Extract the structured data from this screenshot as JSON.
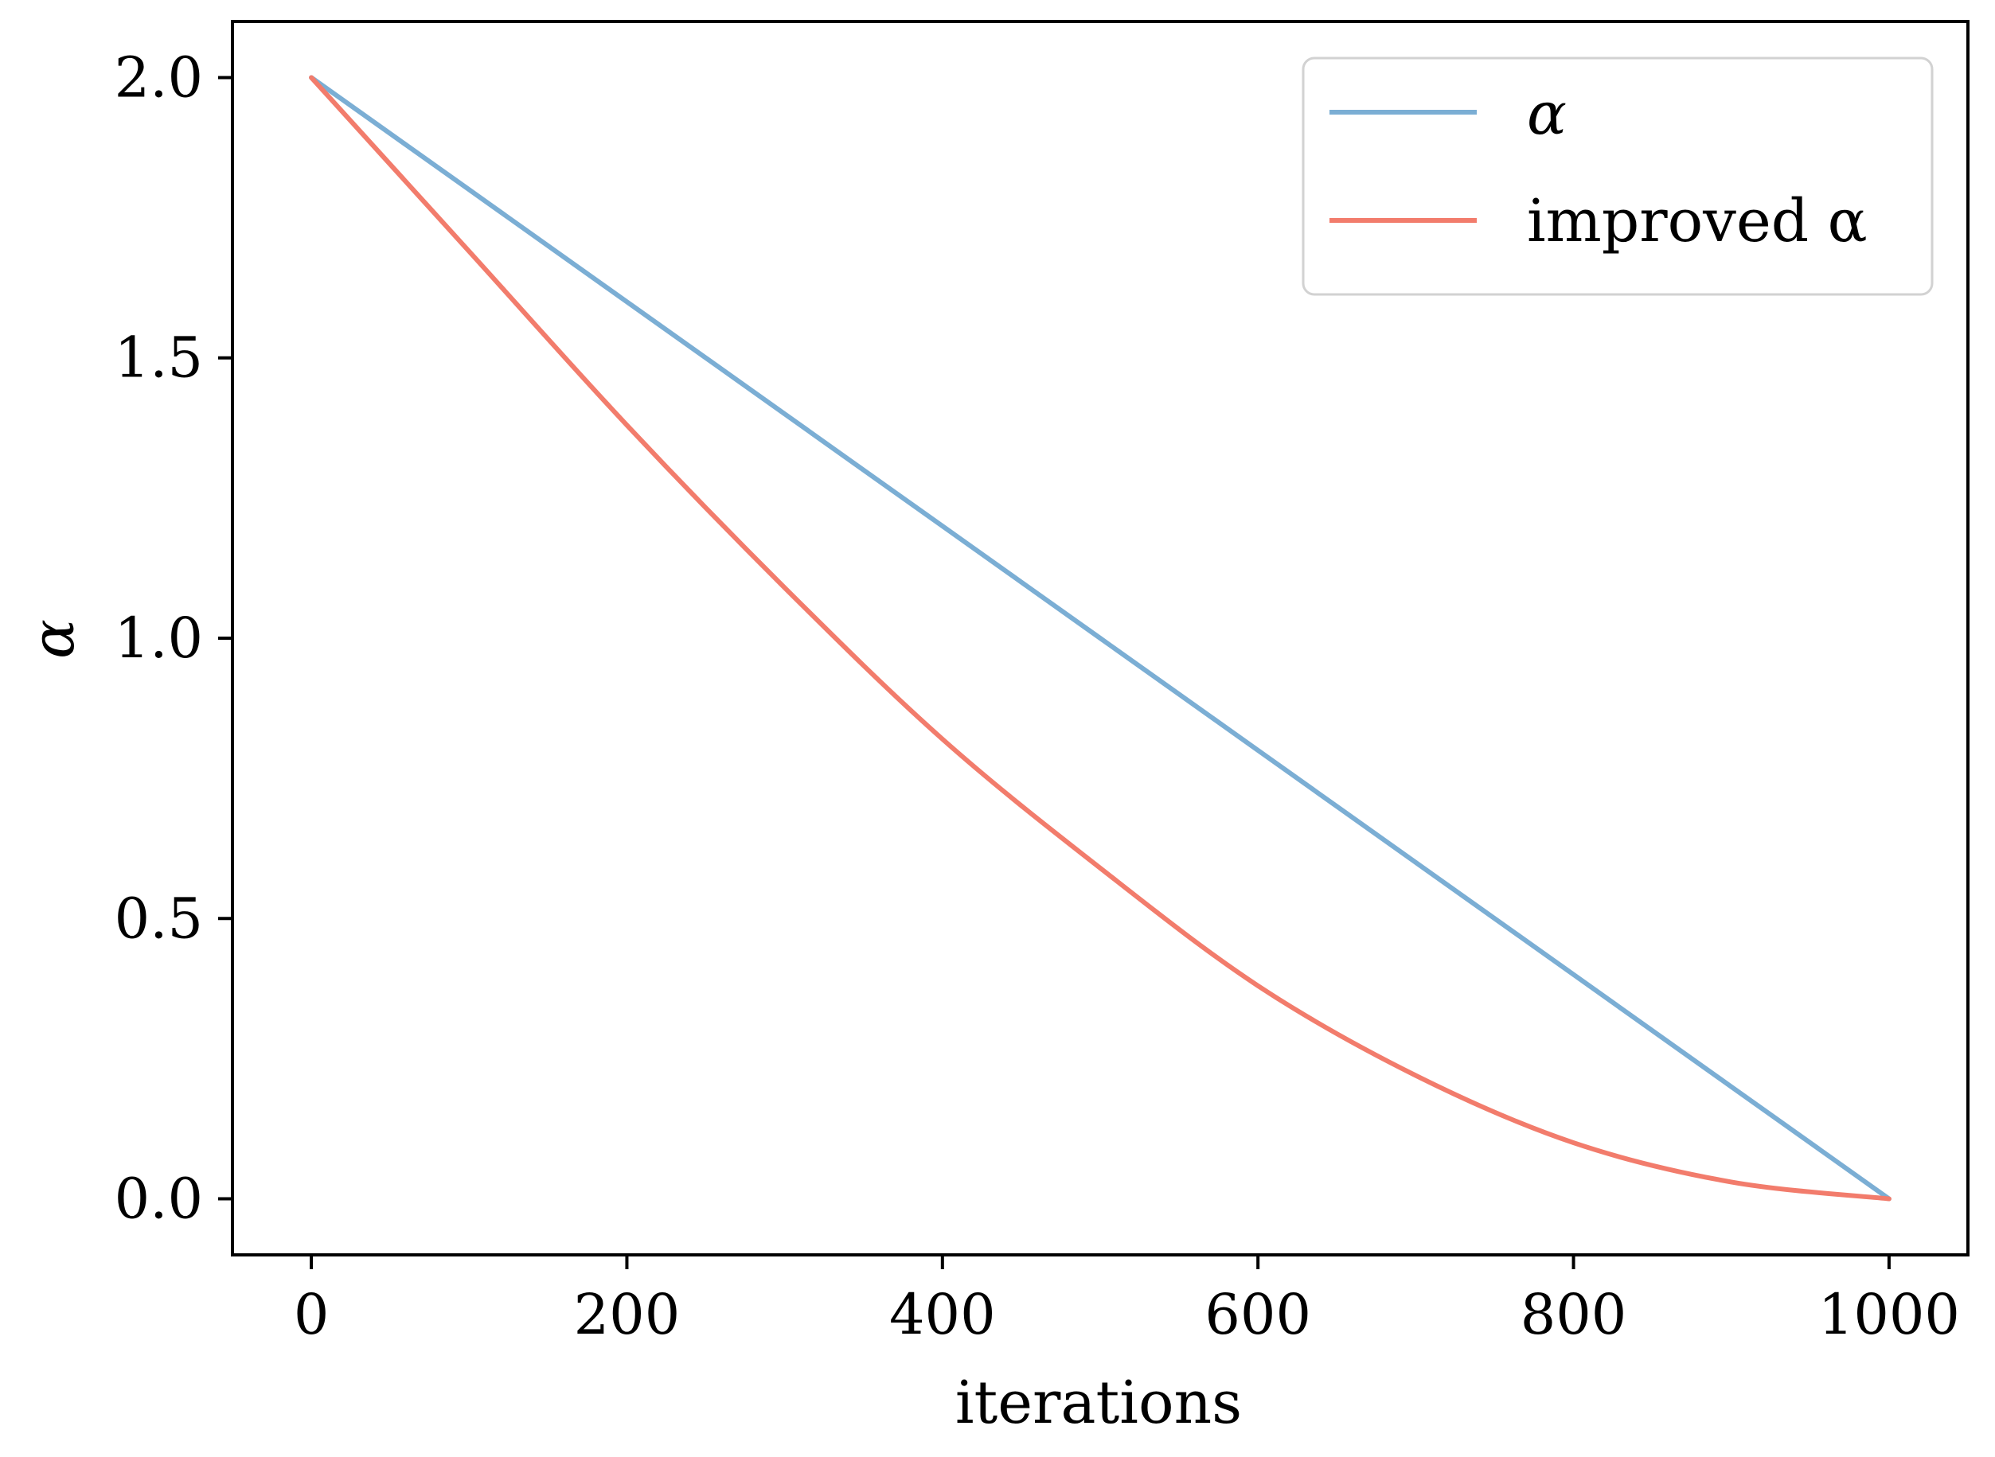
{
  "chart_data": {
    "type": "line",
    "title": "",
    "xlabel": "iterations",
    "ylabel": "α",
    "xlim": [
      -50,
      1050
    ],
    "ylim": [
      -0.1,
      2.1
    ],
    "xticks": [
      0,
      200,
      400,
      600,
      800,
      1000
    ],
    "xtick_labels": [
      "0",
      "200",
      "400",
      "600",
      "800",
      "1000"
    ],
    "yticks": [
      0.0,
      0.5,
      1.0,
      1.5,
      2.0
    ],
    "ytick_labels": [
      "0.0",
      "0.5",
      "1.0",
      "1.5",
      "2.0"
    ],
    "grid": false,
    "legend_position": "top-right",
    "x": [
      0,
      100,
      200,
      300,
      400,
      500,
      600,
      700,
      800,
      900,
      1000
    ],
    "series": [
      {
        "name": "α",
        "color": "#7baed4",
        "values": [
          2.0,
          1.8,
          1.6,
          1.4,
          1.2,
          1.0,
          0.8,
          0.6,
          0.4,
          0.2,
          0.0
        ]
      },
      {
        "name": "improved α",
        "color": "#f27c6c",
        "values": [
          2.0,
          1.69,
          1.38,
          1.09,
          0.82,
          0.59,
          0.38,
          0.22,
          0.1,
          0.03,
          0.0
        ]
      }
    ]
  }
}
